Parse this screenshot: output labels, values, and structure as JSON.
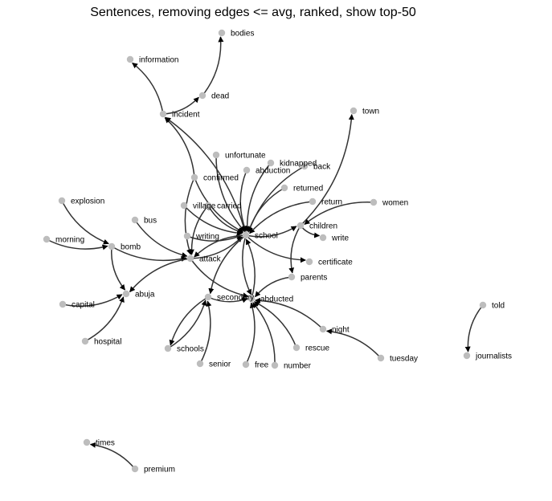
{
  "title": "Sentences, removing edges <= avg, ranked, show top-50",
  "colors": {
    "node": "#bdbdbd",
    "edge": "#333333",
    "text": "#000000"
  },
  "nodes": [
    {
      "id": "bodies"
    },
    {
      "id": "information"
    },
    {
      "id": "dead"
    },
    {
      "id": "incident"
    },
    {
      "id": "town"
    },
    {
      "id": "unfortunate"
    },
    {
      "id": "kidnapped"
    },
    {
      "id": "abduction"
    },
    {
      "id": "back"
    },
    {
      "id": "confirmed"
    },
    {
      "id": "returned"
    },
    {
      "id": "explosion"
    },
    {
      "id": "village"
    },
    {
      "id": "carried"
    },
    {
      "id": "return"
    },
    {
      "id": "women"
    },
    {
      "id": "bus"
    },
    {
      "id": "writing"
    },
    {
      "id": "school"
    },
    {
      "id": "children"
    },
    {
      "id": "write"
    },
    {
      "id": "morning"
    },
    {
      "id": "bomb"
    },
    {
      "id": "attack"
    },
    {
      "id": "certificate"
    },
    {
      "id": "parents"
    },
    {
      "id": "capital"
    },
    {
      "id": "abuja"
    },
    {
      "id": "secondary"
    },
    {
      "id": "abducted"
    },
    {
      "id": "told"
    },
    {
      "id": "night"
    },
    {
      "id": "hospital"
    },
    {
      "id": "schools"
    },
    {
      "id": "rescue"
    },
    {
      "id": "tuesday"
    },
    {
      "id": "journalists"
    },
    {
      "id": "senior"
    },
    {
      "id": "free"
    },
    {
      "id": "number"
    },
    {
      "id": "times"
    },
    {
      "id": "premium"
    }
  ],
  "edges": [
    {
      "source": "dead",
      "target": "bodies"
    },
    {
      "source": "incident",
      "target": "information"
    },
    {
      "source": "incident",
      "target": "dead"
    },
    {
      "source": "confirmed",
      "target": "incident"
    },
    {
      "source": "school",
      "target": "incident"
    },
    {
      "source": "children",
      "target": "town"
    },
    {
      "source": "unfortunate",
      "target": "school"
    },
    {
      "source": "confirmed",
      "target": "school"
    },
    {
      "source": "kidnapped",
      "target": "school"
    },
    {
      "source": "abduction",
      "target": "school"
    },
    {
      "source": "back",
      "target": "school"
    },
    {
      "source": "returned",
      "target": "school"
    },
    {
      "source": "return",
      "target": "school"
    },
    {
      "source": "carried",
      "target": "school"
    },
    {
      "source": "village",
      "target": "school"
    },
    {
      "source": "writing",
      "target": "school"
    },
    {
      "source": "attack",
      "target": "school"
    },
    {
      "source": "women",
      "target": "children"
    },
    {
      "source": "school",
      "target": "children"
    },
    {
      "source": "children",
      "target": "write"
    },
    {
      "source": "school",
      "target": "certificate"
    },
    {
      "source": "children",
      "target": "parents"
    },
    {
      "source": "explosion",
      "target": "bomb"
    },
    {
      "source": "morning",
      "target": "bomb"
    },
    {
      "source": "bomb",
      "target": "abuja"
    },
    {
      "source": "bomb",
      "target": "attack"
    },
    {
      "source": "bus",
      "target": "attack"
    },
    {
      "source": "school",
      "target": "attack"
    },
    {
      "source": "confirmed",
      "target": "attack"
    },
    {
      "source": "carried",
      "target": "attack"
    },
    {
      "source": "attack",
      "target": "abuja"
    },
    {
      "source": "capital",
      "target": "abuja"
    },
    {
      "source": "hospital",
      "target": "abuja"
    },
    {
      "source": "school",
      "target": "secondary"
    },
    {
      "source": "secondary",
      "target": "abducted"
    },
    {
      "source": "school",
      "target": "abducted"
    },
    {
      "source": "attack",
      "target": "abducted"
    },
    {
      "source": "parents",
      "target": "abducted"
    },
    {
      "source": "abducted",
      "target": "school"
    },
    {
      "source": "schools",
      "target": "secondary"
    },
    {
      "source": "senior",
      "target": "secondary"
    },
    {
      "source": "secondary",
      "target": "schools"
    },
    {
      "source": "night",
      "target": "abducted"
    },
    {
      "source": "rescue",
      "target": "abducted"
    },
    {
      "source": "tuesday",
      "target": "night"
    },
    {
      "source": "free",
      "target": "abducted"
    },
    {
      "source": "number",
      "target": "abducted"
    },
    {
      "source": "told",
      "target": "journalists"
    },
    {
      "source": "premium",
      "target": "times"
    }
  ]
}
